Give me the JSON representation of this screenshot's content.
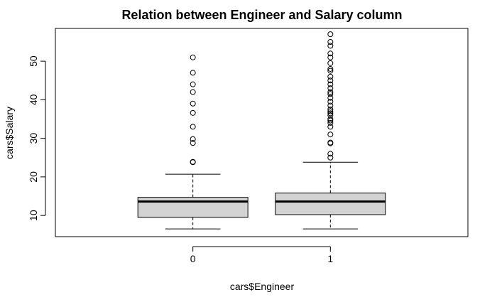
{
  "chart_data": {
    "type": "boxplot",
    "title": "Relation between Engineer and Salary column",
    "xlabel": "cars$Engineer",
    "ylabel": "cars$Salary",
    "categories": [
      "0",
      "1"
    ],
    "y_ticks": [
      10,
      20,
      30,
      40,
      50
    ],
    "ylim": [
      4.5,
      58.5
    ],
    "box_fill": "#d3d3d3",
    "boxes": [
      {
        "category": "0",
        "whisker_low": 6.5,
        "q1": 9.5,
        "median": 13.6,
        "q3": 14.7,
        "whisker_high": 20.7,
        "outliers": [
          23.8,
          23.9,
          28.8,
          29.8,
          33.0,
          36.6,
          39.0,
          42.0,
          44.0,
          47.0,
          51.0
        ]
      },
      {
        "category": "1",
        "whisker_low": 6.5,
        "q1": 10.2,
        "median": 13.6,
        "q3": 15.8,
        "whisker_high": 23.8,
        "outliers": [
          25.0,
          26.0,
          28.7,
          28.9,
          31.0,
          33.0,
          34.0,
          34.6,
          35.0,
          36.0,
          36.5,
          37.0,
          37.5,
          38.5,
          39.5,
          40.5,
          41.5,
          42.0,
          43.0,
          44.0,
          45.0,
          46.0,
          47.5,
          48.0,
          49.5,
          51.0,
          52.0,
          54.0,
          55.0,
          57.0
        ]
      }
    ]
  }
}
